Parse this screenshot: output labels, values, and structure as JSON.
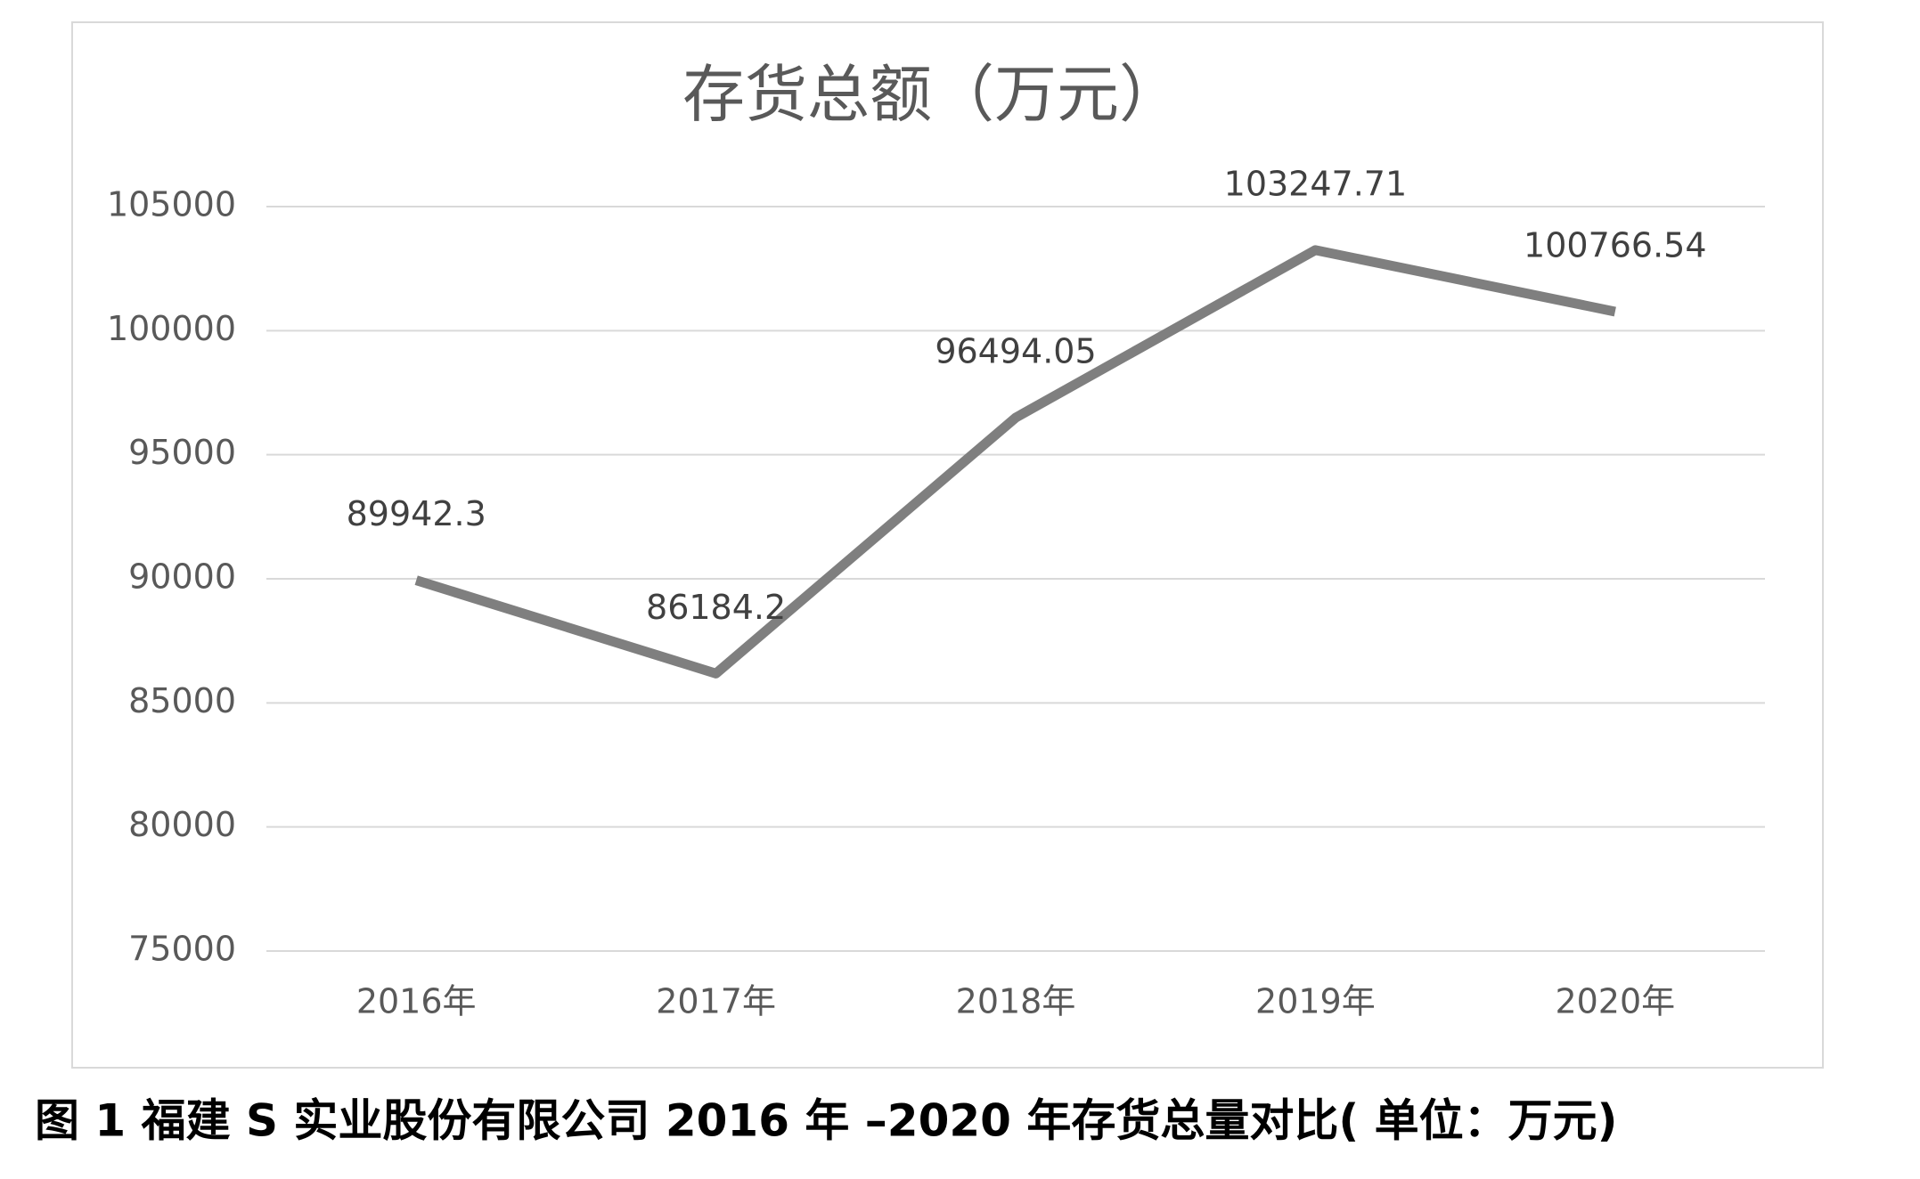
{
  "chart_data": {
    "type": "line",
    "title": "存货总额（万元）",
    "categories": [
      "2016年",
      "2017年",
      "2018年",
      "2019年",
      "2020年"
    ],
    "series": [
      {
        "color": "#7f7f7f",
        "values": [
          89942.3,
          86184.2,
          96494.05,
          103247.71,
          100766.54
        ]
      }
    ],
    "ylim": [
      75000,
      105000
    ],
    "yticks": [
      75000,
      80000,
      85000,
      90000,
      95000,
      100000,
      105000
    ],
    "grid": true
  },
  "caption": "图 1 福建 S 实业股份有限公司 2016 年 –2020 年存货总量对比( 单位：万元)"
}
